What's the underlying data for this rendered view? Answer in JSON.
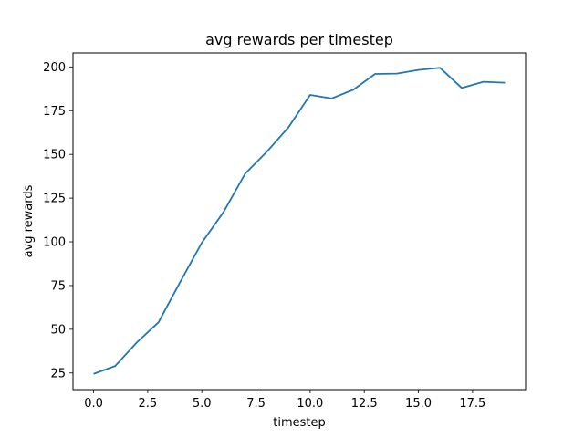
{
  "chart_data": {
    "type": "line",
    "title": "avg rewards per timestep",
    "xlabel": "timestep",
    "ylabel": "avg rewards",
    "xlim": [
      -0.95,
      19.95
    ],
    "ylim": [
      15.5,
      208
    ],
    "x_ticks": [
      0.0,
      2.5,
      5.0,
      7.5,
      10.0,
      12.5,
      15.0,
      17.5
    ],
    "x_tick_labels": [
      "0.0",
      "2.5",
      "5.0",
      "7.5",
      "10.0",
      "12.5",
      "15.0",
      "17.5"
    ],
    "y_ticks": [
      25,
      50,
      75,
      100,
      125,
      150,
      175,
      200
    ],
    "y_tick_labels": [
      "25",
      "50",
      "75",
      "100",
      "125",
      "150",
      "175",
      "200"
    ],
    "grid": false,
    "series": [
      {
        "color": "#1f77b4",
        "x": [
          0,
          1,
          2,
          3,
          4,
          5,
          6,
          7,
          8,
          9,
          10,
          11,
          12,
          13,
          14,
          15,
          16,
          17,
          18,
          19
        ],
        "y": [
          24.5,
          29,
          42.5,
          54,
          77,
          99.5,
          117,
          139,
          151.5,
          165.5,
          184,
          182,
          187,
          196,
          196.2,
          198.3,
          199.5,
          188,
          191.5,
          191
        ]
      }
    ]
  }
}
